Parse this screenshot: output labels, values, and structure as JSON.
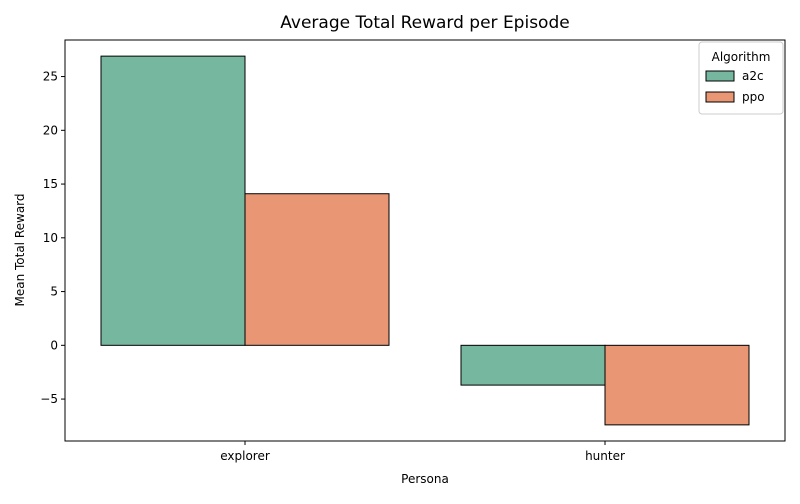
{
  "chart_data": {
    "type": "bar",
    "title": "Average Total Reward per Episode",
    "xlabel": "Persona",
    "ylabel": "Mean Total Reward",
    "categories": [
      "explorer",
      "hunter"
    ],
    "series": [
      {
        "name": "a2c",
        "values": [
          26.9,
          -3.7
        ],
        "color": "#76b7a0"
      },
      {
        "name": "ppo",
        "values": [
          14.1,
          -7.4
        ],
        "color": "#e99675"
      }
    ],
    "ylim": [
      -8.9,
      28.4
    ],
    "yticks": [
      -5,
      0,
      5,
      10,
      15,
      20,
      25
    ],
    "grid": false,
    "legend": {
      "title": "Algorithm",
      "placement": "top-right"
    }
  }
}
